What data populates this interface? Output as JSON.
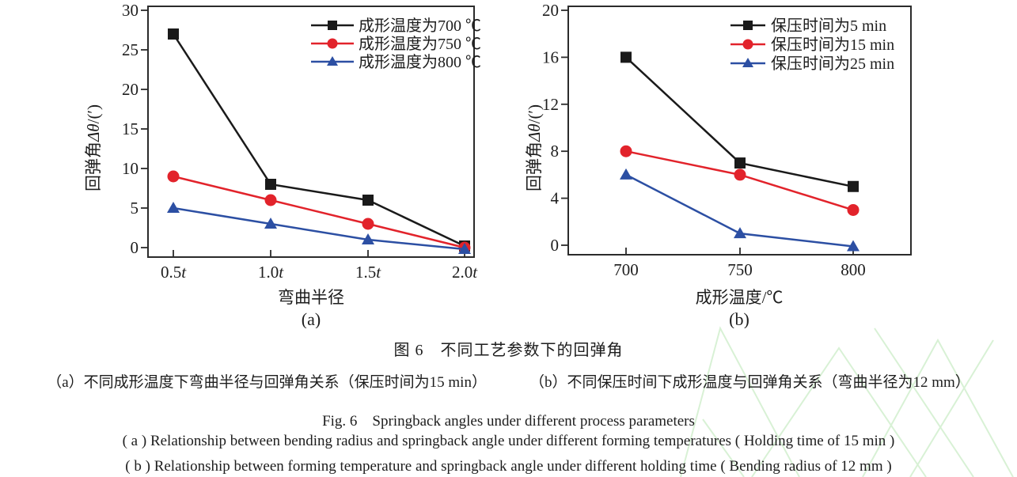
{
  "figure": {
    "caption_cn_title": "图 6　不同工艺参数下的回弹角",
    "caption_cn_a": "（a）不同成形温度下弯曲半径与回弹角关系（保压时间为15 min）",
    "caption_cn_b": "（b）不同保压时间下成形温度与回弹角关系（弯曲半径为12 mm）",
    "caption_en_title": "Fig. 6　Springback angles under different process parameters",
    "caption_en_a": "( a )  Relationship between bending radius and springback angle under different forming temperatures ( Holding time of 15 min )",
    "caption_en_b": "( b )  Relationship between forming temperature and springback angle under different holding time ( Bending radius of 12 mm )"
  },
  "colors": {
    "black": "#1a1a1a",
    "red": "#e2232b",
    "blue": "#2c4fa3",
    "axis": "#2b2b2b",
    "watermark_green": "#b9e6b3"
  },
  "chart_data": [
    {
      "id": "a",
      "type": "line",
      "xlabel": "弯曲半径",
      "ylabel": "回弹角Δθ/(′)",
      "sublabel": "(a)",
      "categories": [
        "0.5t",
        "1.0t",
        "1.5t",
        "2.0t"
      ],
      "yticks": [
        0,
        5,
        10,
        15,
        20,
        25,
        30
      ],
      "ylim": [
        -1.2,
        30.5
      ],
      "grid": false,
      "legend_position": "top-right-inside",
      "series": [
        {
          "name": "成形温度为700 ℃",
          "marker": "square",
          "color_key": "black",
          "values": [
            27,
            8,
            6,
            0.2
          ]
        },
        {
          "name": "成形温度为750 ℃",
          "marker": "circle",
          "color_key": "red",
          "values": [
            9,
            6,
            3,
            0
          ]
        },
        {
          "name": "成形温度为800 ℃",
          "marker": "triangle",
          "color_key": "blue",
          "values": [
            5,
            3,
            1,
            -0.2
          ]
        }
      ]
    },
    {
      "id": "b",
      "type": "line",
      "xlabel": "成形温度/℃",
      "ylabel": "回弹角Δθ/(′)",
      "sublabel": "(b)",
      "categories": [
        "700",
        "750",
        "800"
      ],
      "yticks": [
        0,
        4,
        8,
        12,
        16,
        20
      ],
      "ylim": [
        -0.8,
        20.3
      ],
      "grid": false,
      "legend_position": "top-right-inside",
      "series": [
        {
          "name": "保压时间为5 min",
          "marker": "square",
          "color_key": "black",
          "values": [
            16,
            7,
            5
          ]
        },
        {
          "name": "保压时间为15 min",
          "marker": "circle",
          "color_key": "red",
          "values": [
            8,
            6,
            3
          ]
        },
        {
          "name": "保压时间为25 min",
          "marker": "triangle",
          "color_key": "blue",
          "values": [
            6,
            1,
            -0.1
          ]
        }
      ]
    }
  ]
}
